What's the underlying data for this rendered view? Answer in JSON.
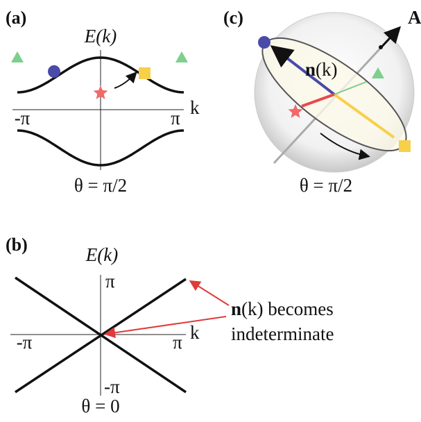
{
  "panel_a": {
    "label": "(a)",
    "ylabel": "E(k)",
    "xtick_left": "-π",
    "xtick_right": "π",
    "xlabel": "k",
    "caption": "θ = π/2"
  },
  "panel_b": {
    "label": "(b)",
    "ylabel": "E(k)",
    "ytick_top": "π",
    "ytick_bottom": "-π",
    "xtick_left": "-π",
    "xtick_right": "π",
    "xlabel": "k",
    "caption": "θ = 0",
    "annotation": {
      "bold": "n",
      "rest": "(k) becomes",
      "line2": "indeterminate"
    }
  },
  "panel_c": {
    "label": "(c)",
    "axis_label": "A",
    "vector": {
      "bold": "n",
      "rest": "(k)"
    },
    "caption": "θ = π/2"
  }
}
